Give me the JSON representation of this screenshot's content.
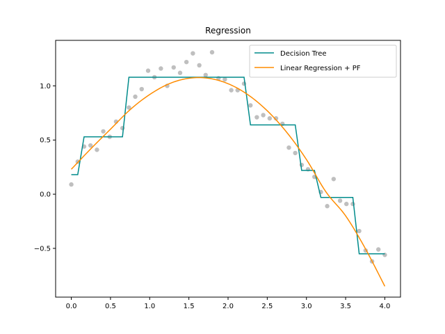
{
  "chart_data": {
    "type": "line",
    "title": "Regression",
    "xlabel": "",
    "ylabel": "",
    "xlim": [
      -0.2,
      4.2
    ],
    "ylim": [
      -0.95,
      1.42
    ],
    "x_ticks": [
      0.0,
      0.5,
      1.0,
      1.5,
      2.0,
      2.5,
      3.0,
      3.5,
      4.0
    ],
    "x_tick_labels": [
      "0.0",
      "0.5",
      "1.0",
      "1.5",
      "2.0",
      "2.5",
      "3.0",
      "3.5",
      "4.0"
    ],
    "y_ticks": [
      -0.5,
      0.0,
      0.5,
      1.0
    ],
    "y_tick_labels": [
      "−0.5",
      "0.0",
      "0.5",
      "1.0"
    ],
    "grid": false,
    "legend_position": "top-right",
    "colors": {
      "decision_tree": "#008b8b",
      "linear_regression": "#ff8c00",
      "scatter": "#bfbfbf"
    },
    "scatter": {
      "x": [
        0.0,
        0.082,
        0.163,
        0.245,
        0.327,
        0.408,
        0.49,
        0.571,
        0.653,
        0.735,
        0.816,
        0.898,
        0.98,
        1.061,
        1.143,
        1.224,
        1.306,
        1.388,
        1.469,
        1.551,
        1.633,
        1.714,
        1.796,
        1.878,
        1.959,
        2.041,
        2.122,
        2.204,
        2.286,
        2.367,
        2.449,
        2.531,
        2.612,
        2.694,
        2.776,
        2.857,
        2.939,
        3.02,
        3.102,
        3.184,
        3.265,
        3.347,
        3.429,
        3.51,
        3.592,
        3.673,
        3.755,
        3.837,
        3.918,
        4.0
      ],
      "y": [
        0.09,
        0.3,
        0.44,
        0.45,
        0.41,
        0.58,
        0.53,
        0.67,
        0.61,
        0.8,
        0.9,
        0.97,
        1.14,
        1.08,
        1.16,
        1.0,
        1.17,
        1.12,
        1.22,
        1.3,
        1.19,
        1.1,
        1.31,
        1.07,
        1.06,
        0.96,
        0.96,
        1.02,
        0.82,
        0.71,
        0.73,
        0.7,
        0.7,
        0.65,
        0.43,
        0.38,
        0.27,
        0.23,
        0.16,
        0.02,
        -0.11,
        0.14,
        -0.06,
        -0.09,
        -0.09,
        -0.34,
        -0.52,
        -0.62,
        -0.51,
        -0.56
      ]
    },
    "series": [
      {
        "name": "Decision Tree",
        "kind": "step",
        "x": [
          0.0,
          0.082,
          0.163,
          0.653,
          0.735,
          2.204,
          2.286,
          2.857,
          2.939,
          3.102,
          3.184,
          3.592,
          3.673,
          4.0
        ],
        "y": [
          0.18,
          0.18,
          0.53,
          0.53,
          1.08,
          1.08,
          0.64,
          0.64,
          0.22,
          0.22,
          -0.03,
          -0.03,
          -0.55,
          -0.55
        ]
      },
      {
        "name": "Linear Regression + PF",
        "kind": "curve",
        "x": [
          0.0,
          0.25,
          0.5,
          0.75,
          1.0,
          1.25,
          1.5,
          1.75,
          2.0,
          2.25,
          2.5,
          2.75,
          3.0,
          3.25,
          3.5,
          3.75,
          4.0
        ],
        "y": [
          0.23,
          0.42,
          0.6,
          0.78,
          0.92,
          1.02,
          1.07,
          1.07,
          1.02,
          0.92,
          0.77,
          0.57,
          0.32,
          0.02,
          -0.2,
          -0.5,
          -0.85
        ]
      }
    ]
  }
}
